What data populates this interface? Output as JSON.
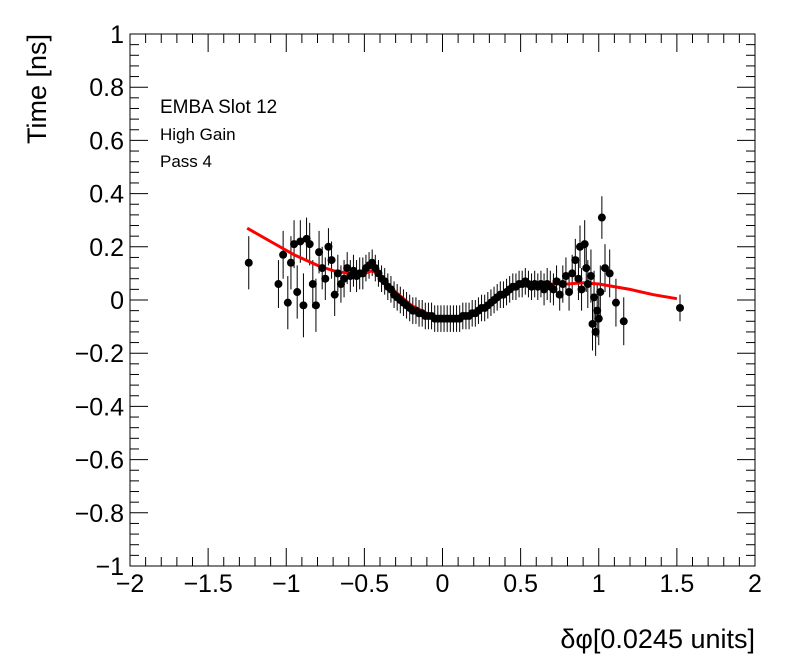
{
  "chart_data": {
    "type": "scatter",
    "xlabel": "δφ[0.0245 units]",
    "ylabel": "Time [ns]",
    "xlim": [
      -2,
      2
    ],
    "ylim": [
      -1,
      1
    ],
    "x_ticks": [
      "−2",
      "−1.5",
      "−1",
      "−0.5",
      "0",
      "0.5",
      "1",
      "1.5",
      "2"
    ],
    "y_ticks": [
      "−1",
      "−0.8",
      "−0.6",
      "−0.4",
      "−0.2",
      "0",
      "0.2",
      "0.4",
      "0.6",
      "0.8",
      "1"
    ],
    "grid": false,
    "annotations": [
      "EMBA Slot 12",
      "High Gain",
      "Pass 4"
    ],
    "colors": {
      "points": "#000000",
      "fit": "#ff0000"
    },
    "points": [
      {
        "x": -1.24,
        "y": 0.14,
        "err": 0.1
      },
      {
        "x": -1.05,
        "y": 0.06,
        "err": 0.09
      },
      {
        "x": -1.02,
        "y": 0.17,
        "err": 0.09
      },
      {
        "x": -0.99,
        "y": -0.01,
        "err": 0.1
      },
      {
        "x": -0.97,
        "y": 0.14,
        "err": 0.1
      },
      {
        "x": -0.95,
        "y": 0.21,
        "err": 0.09
      },
      {
        "x": -0.93,
        "y": 0.03,
        "err": 0.1
      },
      {
        "x": -0.91,
        "y": 0.22,
        "err": 0.08
      },
      {
        "x": -0.89,
        "y": -0.02,
        "err": 0.12
      },
      {
        "x": -0.87,
        "y": 0.23,
        "err": 0.08
      },
      {
        "x": -0.85,
        "y": 0.21,
        "err": 0.08
      },
      {
        "x": -0.83,
        "y": 0.06,
        "err": 0.09
      },
      {
        "x": -0.81,
        "y": -0.02,
        "err": 0.1
      },
      {
        "x": -0.79,
        "y": 0.18,
        "err": 0.08
      },
      {
        "x": -0.77,
        "y": 0.12,
        "err": 0.08
      },
      {
        "x": -0.75,
        "y": 0.08,
        "err": 0.08
      },
      {
        "x": -0.73,
        "y": 0.2,
        "err": 0.07
      },
      {
        "x": -0.71,
        "y": 0.15,
        "err": 0.07
      },
      {
        "x": -0.69,
        "y": 0.02,
        "err": 0.08
      },
      {
        "x": -0.67,
        "y": 0.1,
        "err": 0.07
      },
      {
        "x": -0.65,
        "y": 0.06,
        "err": 0.07
      },
      {
        "x": -0.63,
        "y": 0.08,
        "err": 0.07
      },
      {
        "x": -0.61,
        "y": 0.12,
        "err": 0.06
      },
      {
        "x": -0.59,
        "y": 0.09,
        "err": 0.06
      },
      {
        "x": -0.57,
        "y": 0.11,
        "err": 0.06
      },
      {
        "x": -0.55,
        "y": 0.09,
        "err": 0.06
      },
      {
        "x": -0.53,
        "y": 0.1,
        "err": 0.06
      },
      {
        "x": -0.51,
        "y": 0.1,
        "err": 0.06
      },
      {
        "x": -0.49,
        "y": 0.12,
        "err": 0.05
      },
      {
        "x": -0.47,
        "y": 0.13,
        "err": 0.05
      },
      {
        "x": -0.45,
        "y": 0.14,
        "err": 0.05
      },
      {
        "x": -0.43,
        "y": 0.12,
        "err": 0.05
      },
      {
        "x": -0.41,
        "y": 0.1,
        "err": 0.05
      },
      {
        "x": -0.39,
        "y": 0.08,
        "err": 0.05
      },
      {
        "x": -0.37,
        "y": 0.07,
        "err": 0.05
      },
      {
        "x": -0.35,
        "y": 0.05,
        "err": 0.05
      },
      {
        "x": -0.33,
        "y": 0.04,
        "err": 0.05
      },
      {
        "x": -0.31,
        "y": 0.02,
        "err": 0.05
      },
      {
        "x": -0.29,
        "y": 0.01,
        "err": 0.05
      },
      {
        "x": -0.27,
        "y": 0.0,
        "err": 0.05
      },
      {
        "x": -0.25,
        "y": -0.01,
        "err": 0.05
      },
      {
        "x": -0.23,
        "y": -0.02,
        "err": 0.05
      },
      {
        "x": -0.21,
        "y": -0.03,
        "err": 0.05
      },
      {
        "x": -0.19,
        "y": -0.04,
        "err": 0.05
      },
      {
        "x": -0.17,
        "y": -0.04,
        "err": 0.05
      },
      {
        "x": -0.15,
        "y": -0.05,
        "err": 0.05
      },
      {
        "x": -0.13,
        "y": -0.05,
        "err": 0.05
      },
      {
        "x": -0.11,
        "y": -0.06,
        "err": 0.05
      },
      {
        "x": -0.09,
        "y": -0.06,
        "err": 0.05
      },
      {
        "x": -0.07,
        "y": -0.06,
        "err": 0.05
      },
      {
        "x": -0.05,
        "y": -0.07,
        "err": 0.05
      },
      {
        "x": -0.03,
        "y": -0.07,
        "err": 0.05
      },
      {
        "x": -0.01,
        "y": -0.07,
        "err": 0.05
      },
      {
        "x": 0.01,
        "y": -0.07,
        "err": 0.05
      },
      {
        "x": 0.03,
        "y": -0.07,
        "err": 0.05
      },
      {
        "x": 0.05,
        "y": -0.07,
        "err": 0.05
      },
      {
        "x": 0.07,
        "y": -0.07,
        "err": 0.05
      },
      {
        "x": 0.09,
        "y": -0.07,
        "err": 0.05
      },
      {
        "x": 0.11,
        "y": -0.07,
        "err": 0.05
      },
      {
        "x": 0.13,
        "y": -0.06,
        "err": 0.05
      },
      {
        "x": 0.15,
        "y": -0.06,
        "err": 0.05
      },
      {
        "x": 0.17,
        "y": -0.06,
        "err": 0.05
      },
      {
        "x": 0.19,
        "y": -0.05,
        "err": 0.05
      },
      {
        "x": 0.21,
        "y": -0.05,
        "err": 0.05
      },
      {
        "x": 0.23,
        "y": -0.04,
        "err": 0.05
      },
      {
        "x": 0.25,
        "y": -0.03,
        "err": 0.05
      },
      {
        "x": 0.27,
        "y": -0.03,
        "err": 0.05
      },
      {
        "x": 0.29,
        "y": -0.02,
        "err": 0.05
      },
      {
        "x": 0.31,
        "y": -0.01,
        "err": 0.05
      },
      {
        "x": 0.33,
        "y": 0.0,
        "err": 0.05
      },
      {
        "x": 0.35,
        "y": 0.01,
        "err": 0.05
      },
      {
        "x": 0.37,
        "y": 0.02,
        "err": 0.05
      },
      {
        "x": 0.39,
        "y": 0.02,
        "err": 0.05
      },
      {
        "x": 0.41,
        "y": 0.03,
        "err": 0.05
      },
      {
        "x": 0.43,
        "y": 0.04,
        "err": 0.05
      },
      {
        "x": 0.45,
        "y": 0.05,
        "err": 0.05
      },
      {
        "x": 0.47,
        "y": 0.05,
        "err": 0.05
      },
      {
        "x": 0.49,
        "y": 0.06,
        "err": 0.05
      },
      {
        "x": 0.51,
        "y": 0.06,
        "err": 0.05
      },
      {
        "x": 0.53,
        "y": 0.07,
        "err": 0.05
      },
      {
        "x": 0.55,
        "y": 0.06,
        "err": 0.05
      },
      {
        "x": 0.57,
        "y": 0.05,
        "err": 0.05
      },
      {
        "x": 0.59,
        "y": 0.06,
        "err": 0.05
      },
      {
        "x": 0.61,
        "y": 0.05,
        "err": 0.05
      },
      {
        "x": 0.63,
        "y": 0.06,
        "err": 0.05
      },
      {
        "x": 0.65,
        "y": 0.04,
        "err": 0.06
      },
      {
        "x": 0.67,
        "y": 0.06,
        "err": 0.06
      },
      {
        "x": 0.69,
        "y": 0.05,
        "err": 0.06
      },
      {
        "x": 0.71,
        "y": 0.04,
        "err": 0.06
      },
      {
        "x": 0.73,
        "y": 0.07,
        "err": 0.06
      },
      {
        "x": 0.75,
        "y": 0.02,
        "err": 0.06
      },
      {
        "x": 0.77,
        "y": 0.06,
        "err": 0.07
      },
      {
        "x": 0.79,
        "y": 0.09,
        "err": 0.07
      },
      {
        "x": 0.81,
        "y": 0.03,
        "err": 0.07
      },
      {
        "x": 0.83,
        "y": 0.1,
        "err": 0.07
      },
      {
        "x": 0.85,
        "y": 0.15,
        "err": 0.08
      },
      {
        "x": 0.87,
        "y": 0.08,
        "err": 0.08
      },
      {
        "x": 0.88,
        "y": 0.2,
        "err": 0.08
      },
      {
        "x": 0.89,
        "y": 0.04,
        "err": 0.08
      },
      {
        "x": 0.91,
        "y": 0.21,
        "err": 0.09
      },
      {
        "x": 0.92,
        "y": 0.12,
        "err": 0.09
      },
      {
        "x": 0.93,
        "y": 0.06,
        "err": 0.09
      },
      {
        "x": 0.95,
        "y": 0.09,
        "err": 0.1
      },
      {
        "x": 0.96,
        "y": -0.09,
        "err": 0.1
      },
      {
        "x": 0.97,
        "y": 0.01,
        "err": 0.1
      },
      {
        "x": 0.98,
        "y": -0.12,
        "err": 0.09
      },
      {
        "x": 0.99,
        "y": -0.04,
        "err": 0.1
      },
      {
        "x": 1.0,
        "y": -0.07,
        "err": 0.1
      },
      {
        "x": 1.01,
        "y": 0.03,
        "err": 0.1
      },
      {
        "x": 1.02,
        "y": 0.31,
        "err": 0.08
      },
      {
        "x": 1.04,
        "y": 0.12,
        "err": 0.09
      },
      {
        "x": 1.07,
        "y": 0.1,
        "err": 0.09
      },
      {
        "x": 1.11,
        "y": -0.01,
        "err": 0.09
      },
      {
        "x": 1.16,
        "y": -0.08,
        "err": 0.09
      },
      {
        "x": 1.52,
        "y": -0.03,
        "err": 0.05
      }
    ],
    "fit": [
      {
        "x": -1.25,
        "y": 0.27
      },
      {
        "x": -1.1,
        "y": 0.22
      },
      {
        "x": -0.95,
        "y": 0.17
      },
      {
        "x": -0.8,
        "y": 0.13
      },
      {
        "x": -0.7,
        "y": 0.11
      },
      {
        "x": -0.6,
        "y": 0.1
      },
      {
        "x": -0.55,
        "y": 0.1
      },
      {
        "x": -0.5,
        "y": 0.1
      },
      {
        "x": -0.45,
        "y": 0.11
      },
      {
        "x": -0.42,
        "y": 0.1
      },
      {
        "x": -0.38,
        "y": 0.08
      },
      {
        "x": -0.3,
        "y": 0.03
      },
      {
        "x": -0.2,
        "y": -0.02
      },
      {
        "x": -0.1,
        "y": -0.05
      },
      {
        "x": 0.0,
        "y": -0.07
      },
      {
        "x": 0.05,
        "y": -0.075
      },
      {
        "x": 0.1,
        "y": -0.07
      },
      {
        "x": 0.2,
        "y": -0.05
      },
      {
        "x": 0.3,
        "y": -0.02
      },
      {
        "x": 0.4,
        "y": 0.02
      },
      {
        "x": 0.48,
        "y": 0.05
      },
      {
        "x": 0.55,
        "y": 0.06
      },
      {
        "x": 0.6,
        "y": 0.05
      },
      {
        "x": 0.7,
        "y": 0.06
      },
      {
        "x": 0.8,
        "y": 0.06
      },
      {
        "x": 0.9,
        "y": 0.065
      },
      {
        "x": 1.0,
        "y": 0.06
      },
      {
        "x": 1.2,
        "y": 0.04
      },
      {
        "x": 1.35,
        "y": 0.02
      },
      {
        "x": 1.5,
        "y": 0.005
      }
    ]
  }
}
